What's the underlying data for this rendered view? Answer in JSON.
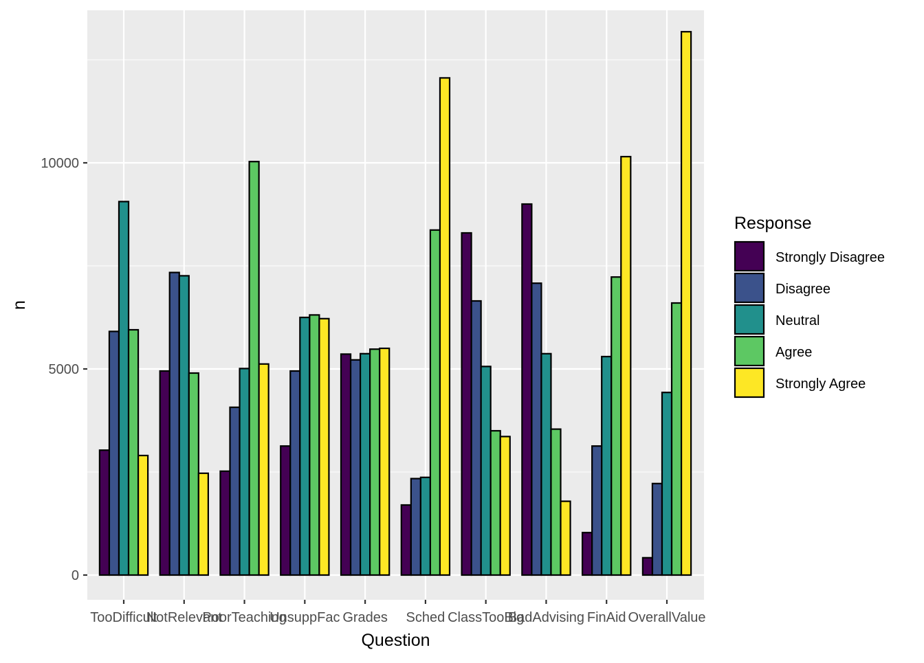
{
  "chart_data": {
    "type": "bar",
    "xlabel": "Question",
    "ylabel": "n",
    "categories": [
      "TooDifficult",
      "NotRelevant",
      "PoorTeaching",
      "UnsuppFac",
      "Grades",
      "Sched",
      "ClassTooBig",
      "BadAdvising",
      "FinAid",
      "OverallValue"
    ],
    "yticks": [
      0,
      5000,
      10000
    ],
    "ylim": [
      -600,
      13700
    ],
    "grid": true,
    "legend": {
      "title": "Response",
      "position": "right"
    },
    "series": [
      {
        "name": "Strongly Disagree",
        "color": "#440154",
        "values": [
          3030,
          4950,
          2520,
          3130,
          5360,
          1700,
          8300,
          9000,
          1030,
          420
        ]
      },
      {
        "name": "Disagree",
        "color": "#3B528B",
        "values": [
          5910,
          7340,
          4070,
          4950,
          5220,
          2340,
          6650,
          7080,
          3130,
          2220
        ]
      },
      {
        "name": "Neutral",
        "color": "#21908C",
        "values": [
          9060,
          7260,
          5010,
          6250,
          5370,
          2370,
          5060,
          5370,
          5300,
          4430
        ]
      },
      {
        "name": "Agree",
        "color": "#5DC863",
        "values": [
          5950,
          4900,
          10030,
          6310,
          5480,
          8370,
          3500,
          3540,
          7230,
          6600
        ]
      },
      {
        "name": "Strongly Agree",
        "color": "#FDE725",
        "values": [
          2900,
          2470,
          5120,
          6220,
          5500,
          12060,
          3360,
          1790,
          10150,
          13180
        ]
      }
    ]
  }
}
